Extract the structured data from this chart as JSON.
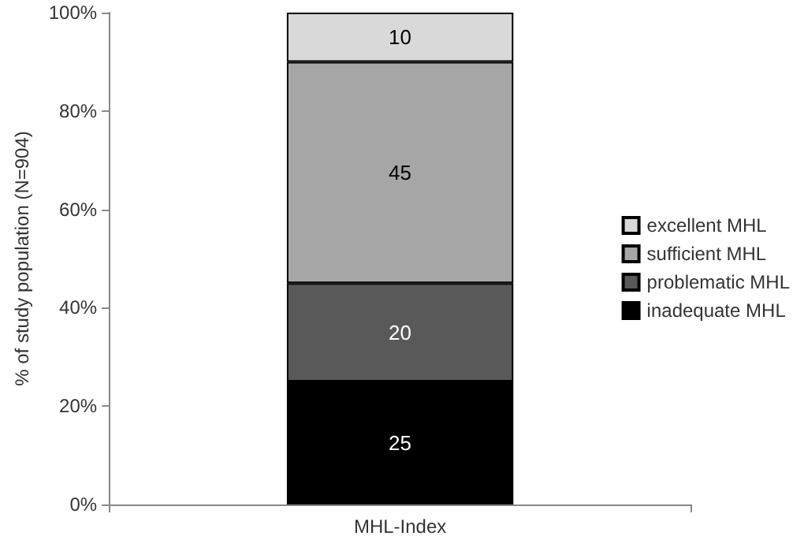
{
  "chart_data": {
    "type": "bar",
    "stacked": true,
    "ylabel": "% of study population (N=904)",
    "categories": [
      "MHL-Index"
    ],
    "series": [
      {
        "name": "inadequate MHL",
        "color": "#000000",
        "values": [
          25
        ]
      },
      {
        "name": "problematic MHL",
        "color": "#595959",
        "values": [
          20
        ]
      },
      {
        "name": "sufficient MHL",
        "color": "#a6a6a6",
        "values": [
          45
        ]
      },
      {
        "name": "excellent MHL",
        "color": "#d9d9d9",
        "values": [
          10
        ]
      }
    ],
    "ylim": [
      0,
      100
    ],
    "yticks": [
      {
        "value": 0,
        "label": "0%"
      },
      {
        "value": 20,
        "label": "20%"
      },
      {
        "value": 40,
        "label": "40%"
      },
      {
        "value": 60,
        "label": "60%"
      },
      {
        "value": 80,
        "label": "80%"
      },
      {
        "value": 100,
        "label": "100%"
      }
    ],
    "data_labels": true,
    "grid": false,
    "legend": "right"
  }
}
